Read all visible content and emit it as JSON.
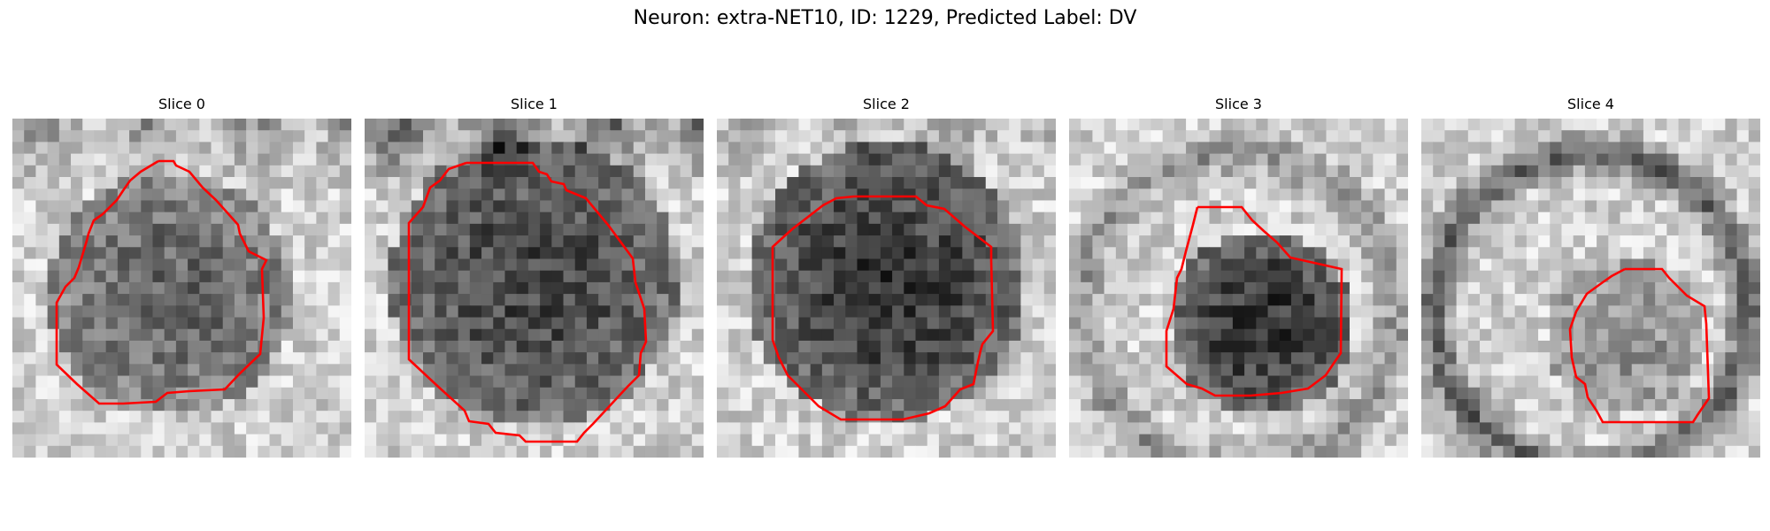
{
  "figure": {
    "title": "Neuron: extra-NET10, ID: 1229, Predicted Label: DV"
  },
  "colors": {
    "contour": "#ff0000",
    "background": "#ffffff"
  },
  "slices": [
    {
      "label": "Slice 0"
    },
    {
      "label": "Slice 1"
    },
    {
      "label": "Slice 2"
    },
    {
      "label": "Slice 3"
    },
    {
      "label": "Slice 4"
    }
  ]
}
